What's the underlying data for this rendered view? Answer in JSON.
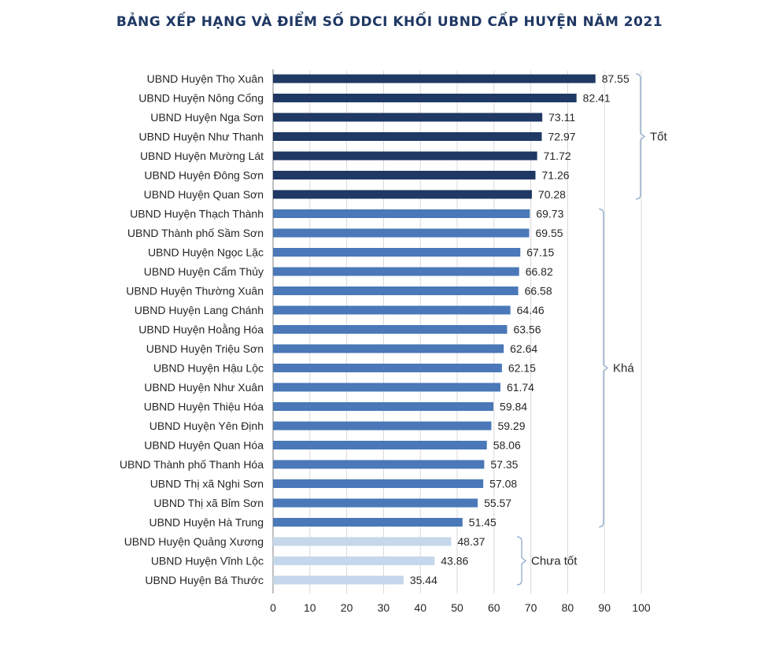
{
  "chart_data": {
    "type": "bar",
    "orientation": "horizontal",
    "title": "BẢNG XẾP HẠNG VÀ ĐIỂM SỐ DDCI KHỐI UBND CẤP HUYỆN NĂM 2021",
    "categories": [
      "UBND Huyện Thọ Xuân",
      "UBND Huyện Nông Cống",
      "UBND Huyện Nga Sơn",
      "UBND Huyện Như Thanh",
      "UBND Huyện Mường Lát",
      "UBND Huyện Đông Sơn",
      "UBND Huyện Quan Sơn",
      "UBND Huyện Thạch Thành",
      "UBND Thành phố Sầm Sơn",
      "UBND Huyện Ngọc Lặc",
      "UBND Huyện Cẩm Thủy",
      "UBND Huyện Thường Xuân",
      "UBND Huyện Lang Chánh",
      "UBND Huyện Hoằng Hóa",
      "UBND Huyện Triệu Sơn",
      "UBND Huyện Hậu Lộc",
      "UBND Huyện Như Xuân",
      "UBND Huyện Thiệu Hóa",
      "UBND Huyện Yên Định",
      "UBND Huyện Quan Hóa",
      "UBND Thành phố Thanh Hóa",
      "UBND Thị xã Nghi Sơn",
      "UBND Thị xã Bỉm Sơn",
      "UBND Huyện Hà Trung",
      "UBND Huyện Quảng Xương",
      "UBND Huyện Vĩnh Lộc",
      "UBND Huyện Bá Thước"
    ],
    "values": [
      87.55,
      82.41,
      73.11,
      72.97,
      71.72,
      71.26,
      70.28,
      69.73,
      69.55,
      67.15,
      66.82,
      66.58,
      64.46,
      63.56,
      62.64,
      62.15,
      61.74,
      59.84,
      59.29,
      58.06,
      57.35,
      57.08,
      55.57,
      51.45,
      48.37,
      43.86,
      35.44
    ],
    "value_labels": [
      "87.55",
      "82.41",
      "73.11",
      "72.97",
      "71.72",
      "71.26",
      "70.28",
      "69.73",
      "69.55",
      "67.15",
      "66.82",
      "66.58",
      "64.46",
      "63.56",
      "62.64",
      "62.15",
      "61.74",
      "59.84",
      "59.29",
      "58.06",
      "57.35",
      "57.08",
      "55.57",
      "51.45",
      "48.37",
      "43.86",
      "35.44"
    ],
    "groups": [
      {
        "label": "Tốt",
        "first": 0,
        "last": 6,
        "color": "#1f3864"
      },
      {
        "label": "Khá",
        "first": 7,
        "last": 23,
        "color": "#4a78b8"
      },
      {
        "label": "Chưa tốt",
        "first": 24,
        "last": 26,
        "color": "#c5d7ea"
      }
    ],
    "xlim": [
      0,
      100
    ],
    "xticks": [
      "0",
      "10",
      "20",
      "30",
      "40",
      "50",
      "60",
      "70",
      "80",
      "90",
      "100"
    ],
    "xlabel": "",
    "ylabel": "",
    "grid": "vertical",
    "legend": "none"
  }
}
